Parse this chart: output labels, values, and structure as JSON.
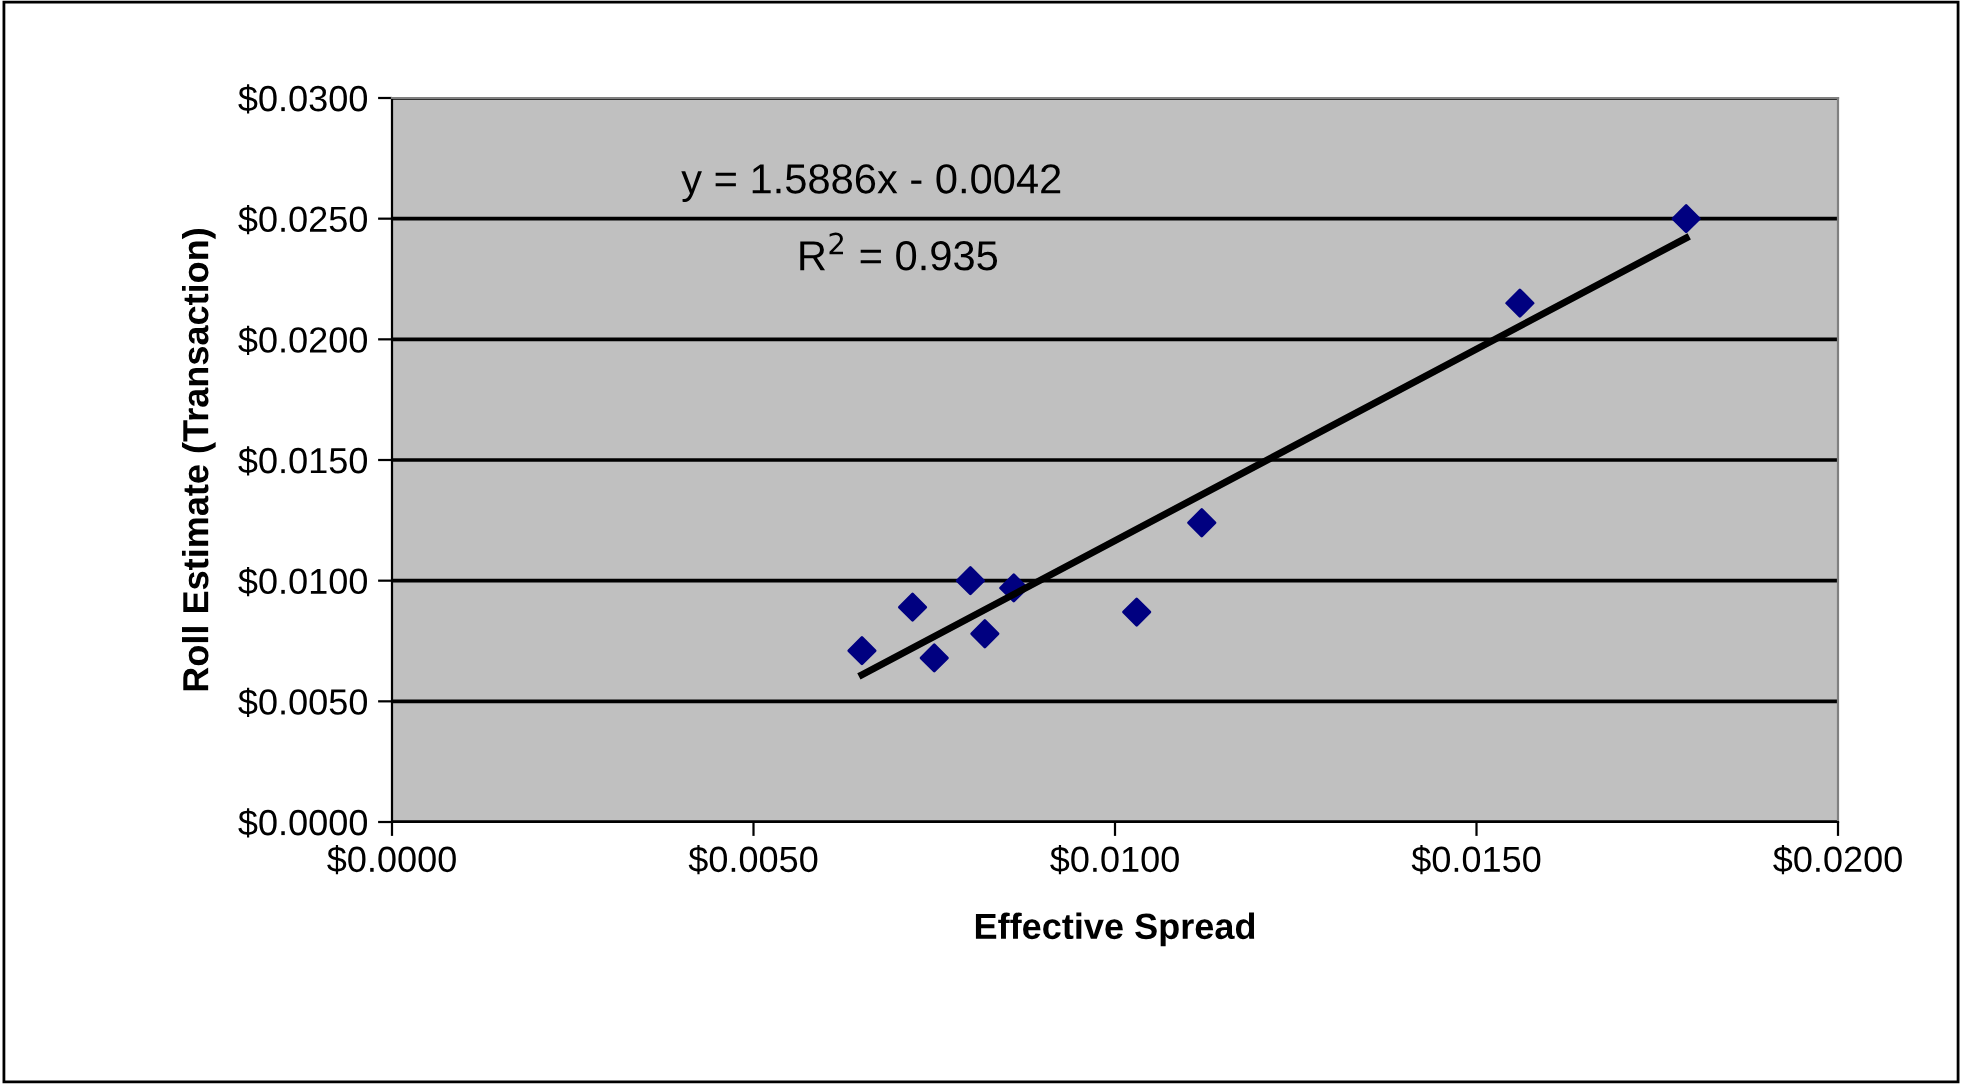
{
  "chart_data": {
    "type": "scatter",
    "xlabel": "Effective Spread",
    "ylabel": "Roll Estimate (Transaction)",
    "annotations": [
      "y = 1.5886x - 0.0042",
      "R$^{2}$ = 0.935"
    ],
    "series": [
      {
        "color": "#000080",
        "marker": "diamond",
        "x": [
          0.0065,
          0.0072,
          0.0075,
          0.008,
          0.0082,
          0.0086,
          0.0103,
          0.0112,
          0.0156,
          0.0179
        ],
        "values": [
          0.0071,
          0.0089,
          0.0068,
          0.01,
          0.0078,
          0.0097,
          0.0087,
          0.0124,
          0.0215,
          0.025
        ]
      },
      {
        "type": "line",
        "color": "#000000",
        "marker": "none",
        "line_style": "solid",
        "x": [
          0.0065,
          0.0179
        ],
        "values": [
          0.0061,
          0.0242
        ]
      }
    ],
    "xlim": [
      0,
      0.02
    ],
    "xticks": [
      {
        "value": 0,
        "label": "$0.0000"
      },
      {
        "value": 0.005,
        "label": "$0.0050"
      },
      {
        "value": 0.01,
        "label": "$0.0100"
      },
      {
        "value": 0.015,
        "label": "$0.0150"
      },
      {
        "value": 0.02,
        "label": "$0.0200"
      }
    ],
    "ylim": [
      0,
      0.03
    ],
    "yticks": [
      {
        "value": 0,
        "label": "$0.0000"
      },
      {
        "value": 0.005,
        "label": "$0.0050"
      },
      {
        "value": 0.01,
        "label": "$0.0100"
      },
      {
        "value": 0.015,
        "label": "$0.0150"
      },
      {
        "value": 0.02,
        "label": "$0.0200"
      },
      {
        "value": 0.025,
        "label": "$0.0250"
      },
      {
        "value": 0.03,
        "label": "$0.0300"
      }
    ],
    "grid": "y",
    "legend": false
  }
}
